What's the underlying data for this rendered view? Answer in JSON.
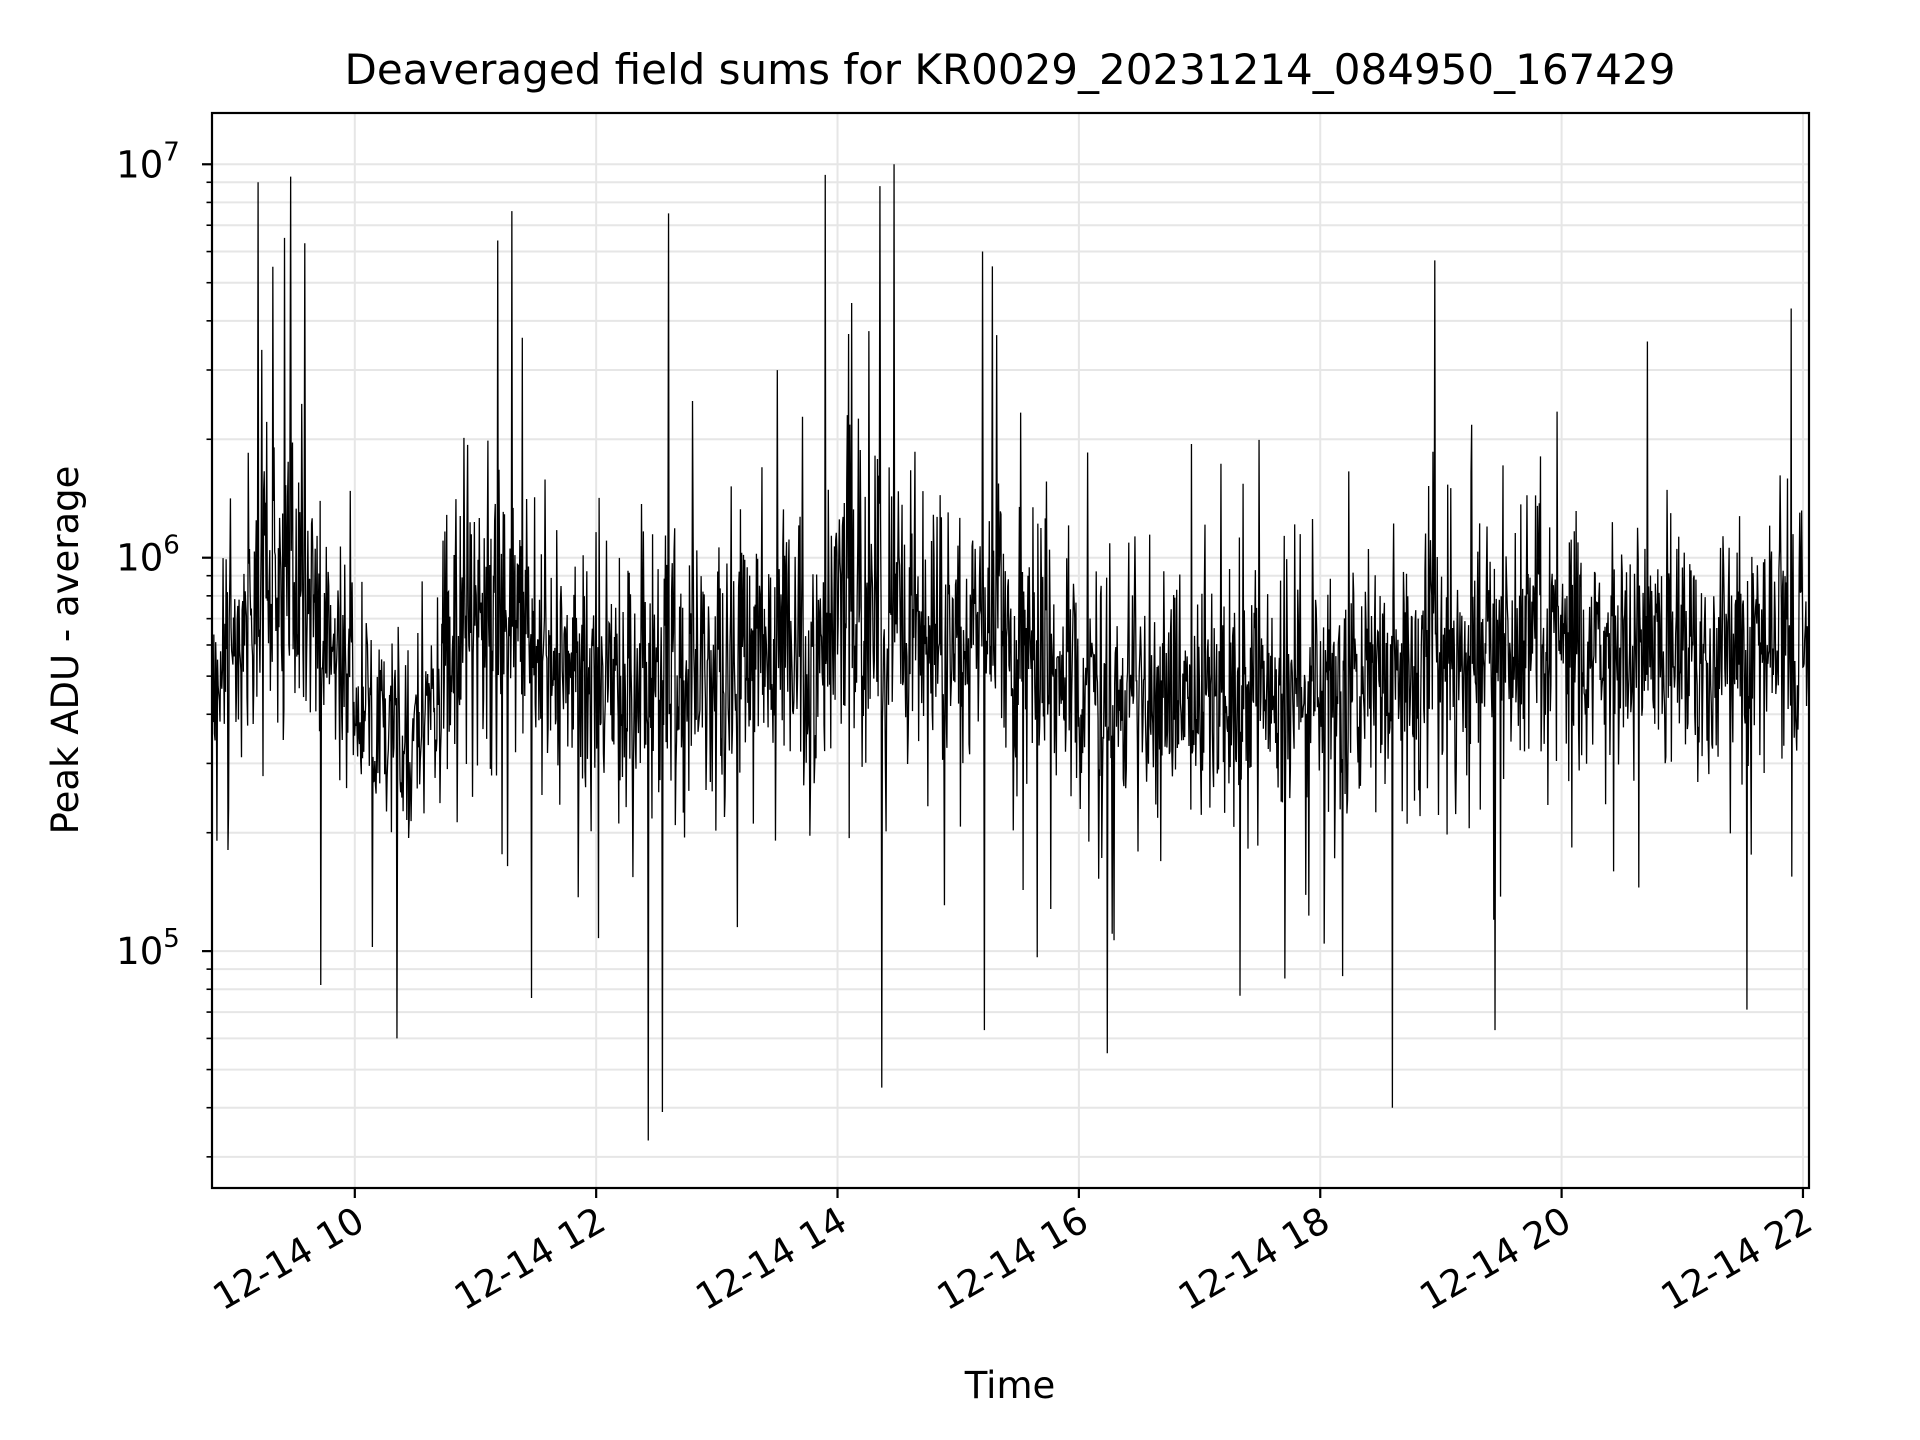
{
  "chart_data": {
    "type": "line",
    "title": "Deaveraged field sums for KR0029_20231214_084950_167429",
    "xlabel": "Time",
    "ylabel": "Peak ADU - average",
    "y_scale": "log",
    "ylim": [
      25000,
      13500000
    ],
    "y_ticks": [
      {
        "value": 100000,
        "base": "10",
        "exp": "5"
      },
      {
        "value": 1000000,
        "base": "10",
        "exp": "6"
      },
      {
        "value": 10000000,
        "base": "10",
        "exp": "7"
      }
    ],
    "xlim": [
      "2023-12-14 08:49",
      "2023-12-14 22:03"
    ],
    "x_ticks": [
      {
        "value": "2023-12-14 10:00",
        "label": "12-14 10"
      },
      {
        "value": "2023-12-14 12:00",
        "label": "12-14 12"
      },
      {
        "value": "2023-12-14 14:00",
        "label": "12-14 14"
      },
      {
        "value": "2023-12-14 16:00",
        "label": "12-14 16"
      },
      {
        "value": "2023-12-14 18:00",
        "label": "12-14 18"
      },
      {
        "value": "2023-12-14 20:00",
        "label": "12-14 20"
      },
      {
        "value": "2023-12-14 22:00",
        "label": "12-14 22"
      }
    ],
    "grid": true,
    "legend": "none",
    "line_color": "#000000",
    "grid_color": "#e6e6e6",
    "envelope": {
      "x": [
        "2023-12-14 08:49",
        "2023-12-14 09:15",
        "2023-12-14 09:30",
        "2023-12-14 09:50",
        "2023-12-14 10:10",
        "2023-12-14 10:25",
        "2023-12-14 10:45",
        "2023-12-14 11:05",
        "2023-12-14 11:25",
        "2023-12-14 11:45",
        "2023-12-14 12:10",
        "2023-12-14 12:35",
        "2023-12-14 13:00",
        "2023-12-14 13:30",
        "2023-12-14 14:00",
        "2023-12-14 14:30",
        "2023-12-14 15:00",
        "2023-12-14 15:20",
        "2023-12-14 15:45",
        "2023-12-14 16:15",
        "2023-12-14 16:45",
        "2023-12-14 17:15",
        "2023-12-14 17:45",
        "2023-12-14 18:15",
        "2023-12-14 18:45",
        "2023-12-14 19:00",
        "2023-12-14 19:30",
        "2023-12-14 20:00",
        "2023-12-14 20:30",
        "2023-12-14 21:00",
        "2023-12-14 21:30",
        "2023-12-14 22:03"
      ],
      "typical_low": [
        280000,
        300000,
        320000,
        280000,
        200000,
        180000,
        240000,
        320000,
        300000,
        250000,
        240000,
        220000,
        230000,
        250000,
        270000,
        250000,
        240000,
        250000,
        220000,
        200000,
        200000,
        210000,
        210000,
        230000,
        240000,
        250000,
        250000,
        270000,
        270000,
        260000,
        270000,
        300000
      ],
      "typical_high": [
        750000,
        2000000,
        2600000,
        1300000,
        700000,
        600000,
        1400000,
        2000000,
        1500000,
        1100000,
        1000000,
        1200000,
        1300000,
        1400000,
        1700000,
        2000000,
        1600000,
        1500000,
        1300000,
        900000,
        1000000,
        1000000,
        950000,
        1000000,
        1200000,
        1400000,
        1200000,
        1300000,
        1350000,
        1200000,
        1200000,
        1500000
      ]
    },
    "spikes": [
      {
        "x": "2023-12-14 09:12",
        "y": 9000000
      },
      {
        "x": "2023-12-14 09:28",
        "y": 9300000
      },
      {
        "x": "2023-12-14 09:35",
        "y": 6300000
      },
      {
        "x": "2023-12-14 09:25",
        "y": 6500000
      },
      {
        "x": "2023-12-14 11:18",
        "y": 7600000
      },
      {
        "x": "2023-12-14 11:11",
        "y": 6400000
      },
      {
        "x": "2023-12-14 12:36",
        "y": 7500000
      },
      {
        "x": "2023-12-14 13:54",
        "y": 9400000
      },
      {
        "x": "2023-12-14 14:28",
        "y": 10000000
      },
      {
        "x": "2023-12-14 14:21",
        "y": 8800000
      },
      {
        "x": "2023-12-14 15:12",
        "y": 6000000
      },
      {
        "x": "2023-12-14 15:17",
        "y": 5500000
      },
      {
        "x": "2023-12-14 18:57",
        "y": 5700000
      },
      {
        "x": "2023-12-14 21:54",
        "y": 4300000
      },
      {
        "x": "2023-12-14 10:21",
        "y": 60000
      },
      {
        "x": "2023-12-14 12:26",
        "y": 33000
      },
      {
        "x": "2023-12-14 12:33",
        "y": 39000
      },
      {
        "x": "2023-12-14 14:22",
        "y": 45000
      },
      {
        "x": "2023-12-14 16:14",
        "y": 55000
      },
      {
        "x": "2023-12-14 18:36",
        "y": 40000
      },
      {
        "x": "2023-12-14 15:13",
        "y": 63000
      },
      {
        "x": "2023-12-14 19:27",
        "y": 63000
      },
      {
        "x": "2023-12-14 21:32",
        "y": 71000
      },
      {
        "x": "2023-12-14 09:43",
        "y": 82000
      },
      {
        "x": "2023-12-14 11:28",
        "y": 76000
      },
      {
        "x": "2023-12-14 17:20",
        "y": 77000
      }
    ]
  }
}
